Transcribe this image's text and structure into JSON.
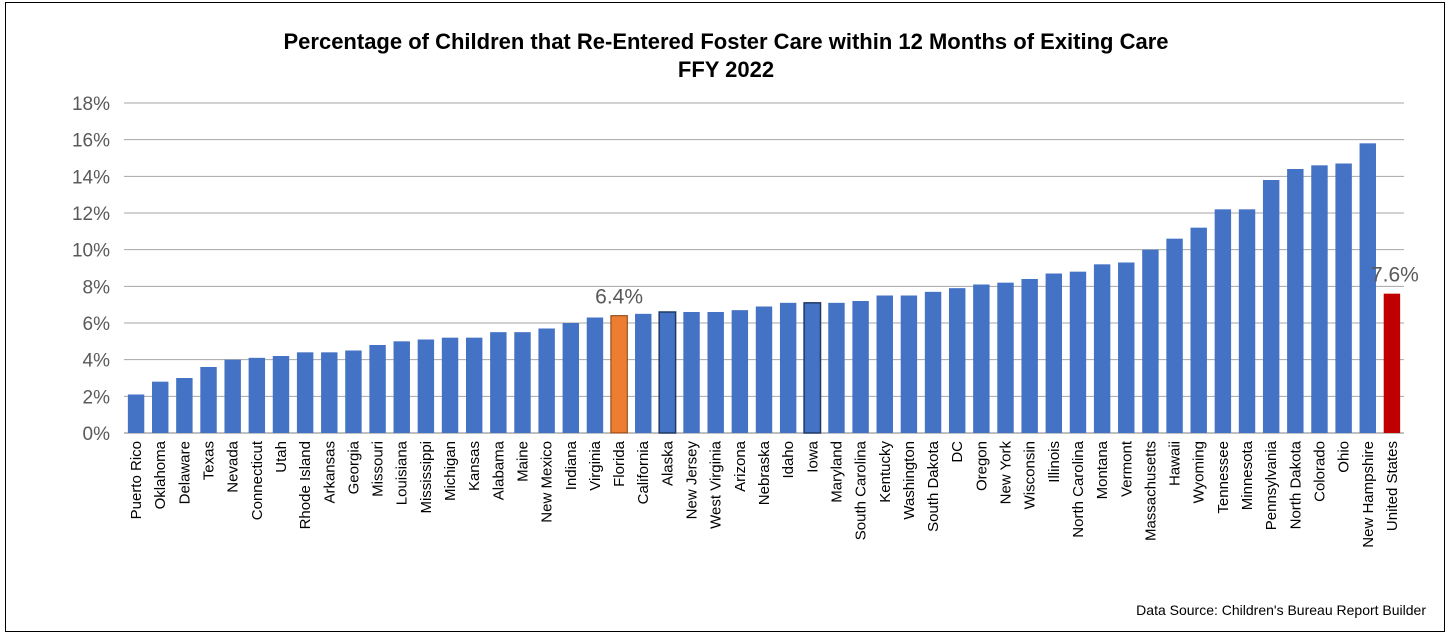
{
  "chart_data": {
    "type": "bar",
    "title": "Percentage of Children that Re-Entered Foster Care within 12 Months of Exiting Care",
    "subtitle": "FFY 2022",
    "source": "Data Source:  Children's Bureau Report Builder",
    "ylim": [
      0,
      18
    ],
    "yticks": [
      0,
      2,
      4,
      6,
      8,
      10,
      12,
      14,
      16,
      18
    ],
    "ytick_labels": [
      "0%",
      "2%",
      "4%",
      "6%",
      "8%",
      "10%",
      "12%",
      "14%",
      "16%",
      "18%"
    ],
    "grid": true,
    "categories": [
      "Puerto Rico",
      "Oklahoma",
      "Delaware",
      "Texas",
      "Nevada",
      "Connecticut",
      "Utah",
      "Rhode Island",
      "Arkansas",
      "Georgia",
      "Missouri",
      "Louisiana",
      "Mississippi",
      "Michigan",
      "Kansas",
      "Alabama",
      "Maine",
      "New Mexico",
      "Indiana",
      "Virginia",
      "Florida",
      "California",
      "Alaska",
      "New Jersey",
      "West Virginia",
      "Arizona",
      "Nebraska",
      "Idaho",
      "Iowa",
      "Maryland",
      "South Carolina",
      "Kentucky",
      "Washington",
      "South Dakota",
      "DC",
      "Oregon",
      "New York",
      "Wisconsin",
      "Illinois",
      "North Carolina",
      "Montana",
      "Vermont",
      "Massachusetts",
      "Hawaii",
      "Wyoming",
      "Tennessee",
      "Minnesota",
      "Pennsylvania",
      "North Dakota",
      "Colorado",
      "Ohio",
      "New Hampshire",
      "United States"
    ],
    "values": [
      2.1,
      2.8,
      3.0,
      3.6,
      4.0,
      4.1,
      4.2,
      4.4,
      4.4,
      4.5,
      4.8,
      5.0,
      5.1,
      5.2,
      5.2,
      5.5,
      5.5,
      5.7,
      6.0,
      6.3,
      6.4,
      6.5,
      6.6,
      6.6,
      6.6,
      6.7,
      6.9,
      7.1,
      7.1,
      7.1,
      7.2,
      7.5,
      7.5,
      7.7,
      7.9,
      8.1,
      8.2,
      8.4,
      8.7,
      8.8,
      9.2,
      9.3,
      10.0,
      10.6,
      11.2,
      12.2,
      12.2,
      13.8,
      14.4,
      14.6,
      14.7,
      15.8,
      7.6
    ],
    "colors": {
      "default": "#4472C4",
      "Florida": "#ED7D31",
      "United States": "#C00000",
      "gridline": "#A6A6A6",
      "outline": "#1F3864"
    },
    "outlined": [
      "Alaska",
      "Iowa"
    ],
    "data_labels": [
      {
        "category": "Florida",
        "text": "6.4%"
      },
      {
        "category": "United States",
        "text": "7.6%"
      }
    ]
  }
}
